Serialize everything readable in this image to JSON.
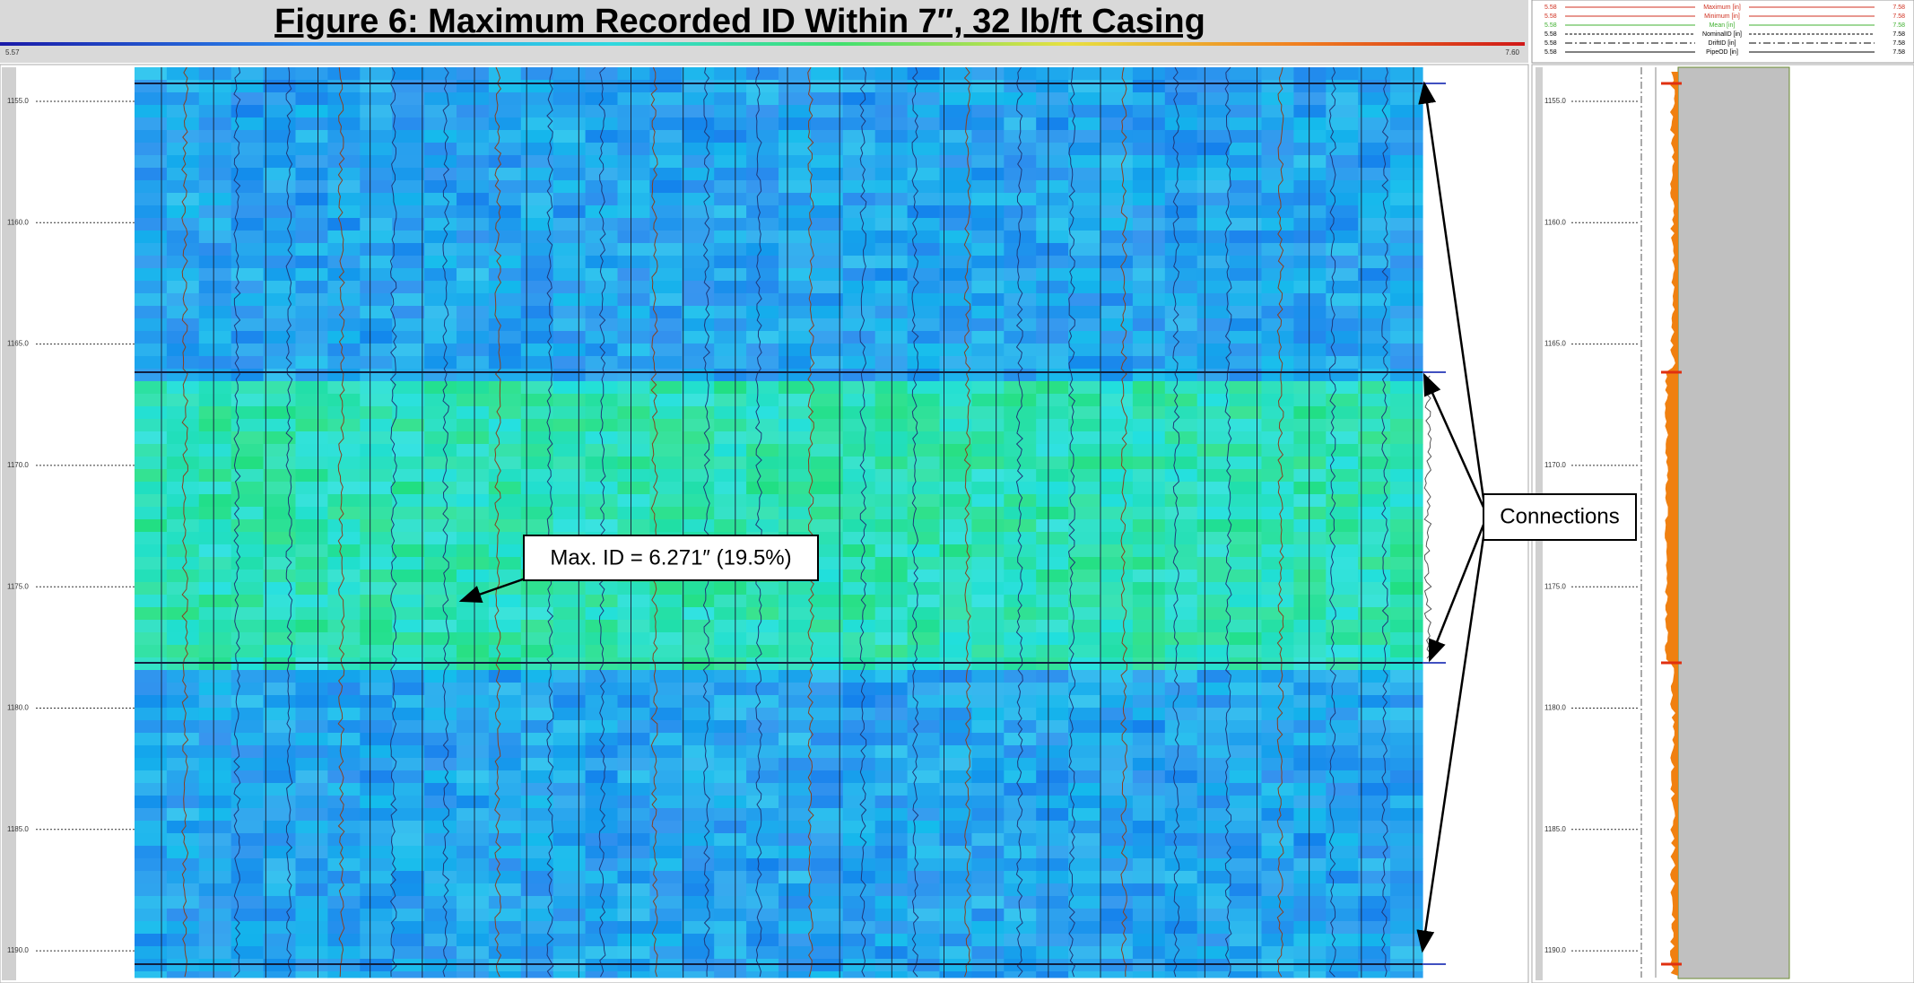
{
  "title": "Figure 6: Maximum Recorded ID Within 7″, 32 lb/ft Casing",
  "color_scale": {
    "min": "5.57",
    "max": "7.60"
  },
  "depth_labels": [
    "1155.0",
    "1160.0",
    "1165.0",
    "1170.0",
    "1175.0",
    "1180.0",
    "1185.0",
    "1190.0"
  ],
  "annotations": {
    "max_id": "Max. ID = 6.271″ (19.5%)",
    "connections": "Connections"
  },
  "legend": [
    {
      "name": "Maximum [in]",
      "min": "5.58",
      "max": "7.58"
    },
    {
      "name": "Minimum [in]",
      "min": "5.58",
      "max": "7.58"
    },
    {
      "name": "Mean [in]",
      "min": "5.58",
      "max": "7.58"
    },
    {
      "name": "NominalID [in]",
      "min": "5.58",
      "max": "7.58"
    },
    {
      "name": "DriftID [in]",
      "min": "5.58",
      "max": "7.58"
    },
    {
      "name": "PipeOD [in]",
      "min": "5.58",
      "max": "7.58"
    }
  ]
}
